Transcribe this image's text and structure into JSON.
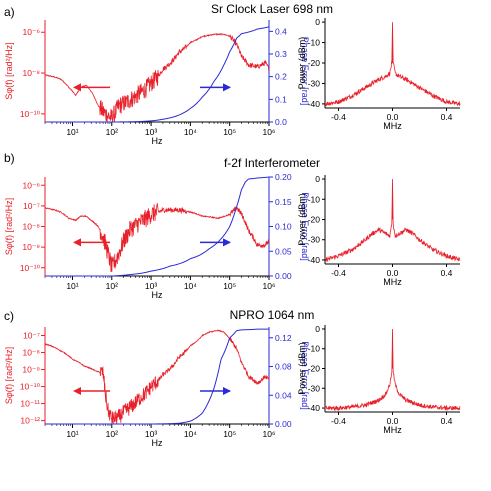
{
  "colors": {
    "noise": "#e8202a",
    "phase": "#2a2ad8",
    "axis_black": "#000000"
  },
  "chart_data": [
    {
      "type": "line",
      "panel_label": "a)",
      "title": "Sr Clock Laser 698 nm",
      "xlabel": "Hz",
      "ylabel_left": "Sφ(f)  [rad²/Hz]",
      "ylabel_right": "Phase Error  [rad]",
      "x_scale": "log",
      "xlim": [
        2,
        1000000
      ],
      "ylim_left_log10": [
        -10.4,
        -5.4
      ],
      "ylim_right": [
        0,
        0.45
      ],
      "x_ticks": [
        "10¹",
        "10²",
        "10³",
        "10⁴",
        "10⁵",
        "10⁶"
      ],
      "y_ticks_left": [
        "10⁻¹⁰",
        "10⁻⁸",
        "10⁻⁶"
      ],
      "y_ticks_right": [
        "0.0",
        "0.1",
        "0.2",
        "0.3",
        "0.4"
      ],
      "noise_psd": {
        "name": "Sφ(f)",
        "x": [
          2,
          5,
          8,
          12,
          16,
          22,
          30,
          45,
          60,
          80,
          100,
          150,
          200,
          300,
          500,
          800,
          1000,
          2000,
          5000,
          10000,
          20000,
          40000,
          70000,
          100000,
          150000,
          200000,
          300000,
          500000,
          800000,
          1000000
        ],
        "log10_y": [
          -8.1,
          -8.3,
          -8.7,
          -9.1,
          -8.7,
          -8.6,
          -8.9,
          -9.6,
          -9.9,
          -10.1,
          -10.2,
          -9.6,
          -9.5,
          -9.3,
          -9.0,
          -8.7,
          -8.5,
          -7.8,
          -7.0,
          -6.5,
          -6.2,
          -6.1,
          -6.1,
          -6.2,
          -6.6,
          -7.2,
          -7.6,
          -7.7,
          -7.5,
          -7.8
        ]
      },
      "phase_error": {
        "name": "Phase Error",
        "x": [
          2,
          100,
          500,
          1000,
          2000,
          5000,
          10000,
          20000,
          40000,
          70000,
          100000,
          150000,
          200000,
          500000,
          1000000
        ],
        "y": [
          0,
          0,
          0.002,
          0.005,
          0.012,
          0.03,
          0.06,
          0.11,
          0.18,
          0.25,
          0.31,
          0.37,
          0.39,
          0.41,
          0.42
        ]
      },
      "spectrum": {
        "xlabel": "MHz",
        "ylabel": "Power (dBm)",
        "xlim": [
          -0.5,
          0.5
        ],
        "ylim": [
          -42,
          2
        ],
        "x_ticks": [
          "-0.4",
          "0.0",
          "0.4"
        ],
        "y_ticks": [
          "0",
          "-10",
          "-20",
          "-30",
          "-40"
        ],
        "x": [
          -0.5,
          -0.4,
          -0.3,
          -0.2,
          -0.15,
          -0.1,
          -0.05,
          -0.02,
          -0.005,
          0,
          0.005,
          0.02,
          0.05,
          0.1,
          0.15,
          0.2,
          0.3,
          0.4,
          0.5
        ],
        "y": [
          -40,
          -39,
          -36,
          -32,
          -30,
          -28,
          -26.5,
          -25,
          -20,
          0,
          -20,
          -25,
          -26.5,
          -28,
          -30,
          -32,
          -36,
          -39,
          -40
        ]
      }
    },
    {
      "type": "line",
      "panel_label": "b)",
      "title": "f-2f Interferometer",
      "xlabel": "Hz",
      "ylabel_left": "Sφ(f)  [rad²/Hz]",
      "ylabel_right": "Phase Error  [rad]",
      "x_scale": "log",
      "xlim": [
        2,
        1000000
      ],
      "ylim_left_log10": [
        -10.4,
        -5.6
      ],
      "ylim_right": [
        0,
        0.2
      ],
      "x_ticks": [
        "10¹",
        "10²",
        "10³",
        "10⁴",
        "10⁵",
        "10⁶"
      ],
      "y_ticks_left": [
        "10⁻¹⁰",
        "10⁻⁹",
        "10⁻⁸",
        "10⁻⁷",
        "10⁻⁶"
      ],
      "y_ticks_right": [
        "0.00",
        "0.05",
        "0.10",
        "0.15",
        "0.20"
      ],
      "noise_psd": {
        "name": "Sφ(f)",
        "x": [
          2,
          5,
          8,
          12,
          16,
          22,
          30,
          45,
          60,
          80,
          100,
          150,
          200,
          300,
          500,
          1000,
          2000,
          5000,
          10000,
          20000,
          50000,
          100000,
          150000,
          200000,
          300000,
          500000,
          800000,
          1000000
        ],
        "log10_y": [
          -7.1,
          -7.3,
          -7.6,
          -7.7,
          -7.5,
          -7.5,
          -7.7,
          -8.0,
          -8.5,
          -9.3,
          -10.0,
          -9.3,
          -8.7,
          -8.1,
          -7.8,
          -7.4,
          -7.2,
          -7.2,
          -7.3,
          -7.5,
          -7.6,
          -7.4,
          -7.1,
          -7.4,
          -8.2,
          -8.9,
          -8.9,
          -8.7
        ]
      },
      "phase_error": {
        "name": "Phase Error",
        "x": [
          2,
          100,
          300,
          1000,
          3000,
          10000,
          30000,
          60000,
          100000,
          150000,
          200000,
          250000,
          300000,
          500000,
          1000000
        ],
        "y": [
          0,
          0,
          0.003,
          0.01,
          0.02,
          0.035,
          0.055,
          0.075,
          0.1,
          0.14,
          0.175,
          0.19,
          0.196,
          0.198,
          0.2
        ]
      },
      "spectrum": {
        "xlabel": "MHz",
        "ylabel": "Power (dBm)",
        "xlim": [
          -0.5,
          0.5
        ],
        "ylim": [
          -42,
          2
        ],
        "x_ticks": [
          "-0.4",
          "0.0",
          "0.4"
        ],
        "y_ticks": [
          "0",
          "-10",
          "-20",
          "-30",
          "-40"
        ],
        "x": [
          -0.5,
          -0.4,
          -0.3,
          -0.2,
          -0.15,
          -0.1,
          -0.05,
          -0.02,
          -0.005,
          0,
          0.005,
          0.02,
          0.05,
          0.1,
          0.15,
          0.2,
          0.3,
          0.4,
          0.5
        ],
        "y": [
          -40,
          -38,
          -35,
          -30,
          -27,
          -25,
          -27,
          -28,
          -22,
          0,
          -22,
          -28,
          -27,
          -25,
          -27,
          -30,
          -35,
          -38,
          -40
        ]
      }
    },
    {
      "type": "line",
      "panel_label": "c)",
      "title": "NPRO 1064 nm",
      "xlabel": "Hz",
      "ylabel_left": "Sφ(f)  [rad²/Hz]",
      "ylabel_right": "Phase Error  [rad]",
      "x_scale": "log",
      "xlim": [
        2,
        1000000
      ],
      "ylim_left_log10": [
        -12.2,
        -6.5
      ],
      "ylim_right": [
        0,
        0.135
      ],
      "x_ticks": [
        "10¹",
        "10²",
        "10³",
        "10⁴",
        "10⁵",
        "10⁶"
      ],
      "y_ticks_left": [
        "10⁻¹²",
        "10⁻¹¹",
        "10⁻¹⁰",
        "10⁻⁹",
        "10⁻⁸",
        "10⁻⁷"
      ],
      "y_ticks_right": [
        "0.00",
        "0.04",
        "0.08",
        "0.12"
      ],
      "noise_psd": {
        "name": "Sφ(f)",
        "x": [
          2,
          5,
          10,
          20,
          40,
          60,
          70,
          80,
          100,
          150,
          200,
          300,
          500,
          1000,
          2000,
          5000,
          10000,
          20000,
          30000,
          50000,
          70000,
          100000,
          150000,
          200000,
          300000,
          500000,
          800000,
          1000000
        ],
        "log10_y": [
          -7.5,
          -7.9,
          -8.4,
          -8.8,
          -9.1,
          -9.2,
          -10.6,
          -11.4,
          -11.9,
          -11.8,
          -11.5,
          -11.2,
          -10.7,
          -10.0,
          -9.3,
          -8.3,
          -7.6,
          -7.0,
          -6.8,
          -6.7,
          -6.8,
          -7.2,
          -7.8,
          -8.6,
          -9.4,
          -9.8,
          -9.4,
          -9.6
        ]
      },
      "phase_error": {
        "name": "Phase Error",
        "x": [
          2,
          1000,
          5000,
          10000,
          20000,
          40000,
          60000,
          100000,
          150000,
          200000,
          500000,
          1000000
        ],
        "y": [
          0,
          0,
          0.001,
          0.004,
          0.015,
          0.05,
          0.09,
          0.12,
          0.13,
          0.131,
          0.132,
          0.132
        ]
      },
      "spectrum": {
        "xlabel": "MHz",
        "ylabel": "Power (dBm)",
        "xlim": [
          -0.5,
          0.5
        ],
        "ylim": [
          -42,
          2
        ],
        "x_ticks": [
          "-0.4",
          "0.0",
          "0.4"
        ],
        "y_ticks": [
          "0",
          "-10",
          "-20",
          "-30",
          "-40"
        ],
        "x": [
          -0.5,
          -0.4,
          -0.3,
          -0.2,
          -0.1,
          -0.05,
          -0.02,
          -0.005,
          0,
          0.005,
          0.02,
          0.05,
          0.1,
          0.2,
          0.3,
          0.4,
          0.5
        ],
        "y": [
          -40,
          -40,
          -39.5,
          -38.5,
          -36,
          -33,
          -28,
          -22,
          0,
          -22,
          -28,
          -33,
          -36,
          -38.5,
          -39.5,
          -40,
          -40
        ]
      }
    }
  ]
}
